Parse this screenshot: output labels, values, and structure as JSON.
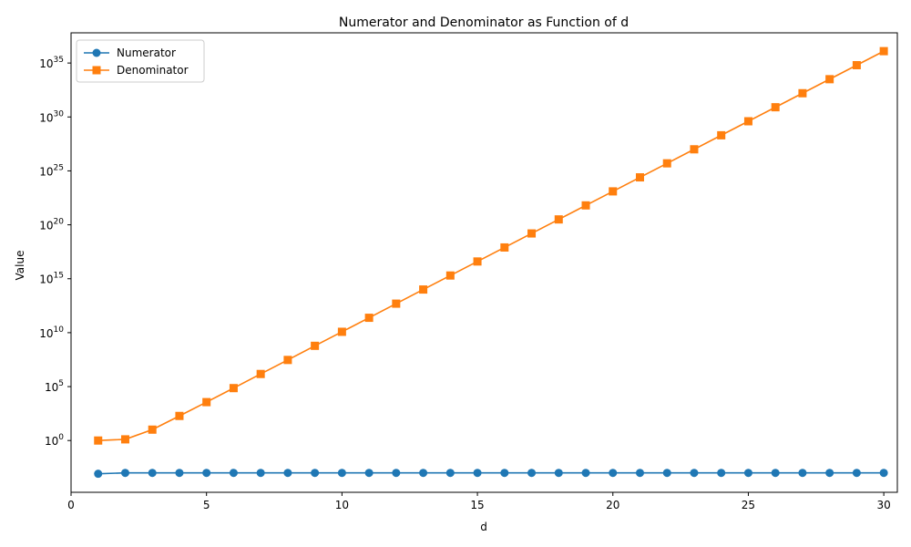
{
  "chart_data": {
    "type": "line",
    "title": "Numerator and Denominator as Function of d",
    "xlabel": "d",
    "ylabel": "Value",
    "yscale": "log",
    "xlim": [
      0,
      30.5
    ],
    "ylim_log10": [
      -4.8,
      37.8
    ],
    "x_ticks": [
      0,
      5,
      10,
      15,
      20,
      25,
      30
    ],
    "y_ticks_exponent": [
      0,
      5,
      10,
      15,
      20,
      25,
      30,
      35
    ],
    "y_tick_base": "10",
    "grid": false,
    "legend_position": "upper-left",
    "x": [
      1,
      2,
      3,
      4,
      5,
      6,
      7,
      8,
      9,
      10,
      11,
      12,
      13,
      14,
      15,
      16,
      17,
      18,
      19,
      20,
      21,
      22,
      23,
      24,
      25,
      26,
      27,
      28,
      29,
      30
    ],
    "series": [
      {
        "name": "Numerator",
        "color": "#1f77b4",
        "marker": "circle",
        "log10_values": [
          -3.08,
          -3.0,
          -3.0,
          -3.0,
          -3.0,
          -3.0,
          -3.0,
          -3.0,
          -3.0,
          -3.0,
          -3.0,
          -3.0,
          -3.0,
          -3.0,
          -3.0,
          -3.0,
          -3.0,
          -3.0,
          -3.0,
          -3.0,
          -3.0,
          -3.0,
          -3.0,
          -3.0,
          -3.0,
          -3.0,
          -3.0,
          -3.0,
          -3.0,
          -3.0
        ]
      },
      {
        "name": "Denominator",
        "color": "#ff7f0e",
        "marker": "square",
        "log10_values": [
          0.0,
          0.11,
          1.01,
          2.28,
          3.56,
          4.86,
          6.17,
          7.47,
          8.78,
          10.08,
          11.38,
          12.69,
          14.0,
          15.3,
          16.6,
          17.9,
          19.2,
          20.5,
          21.8,
          23.1,
          24.4,
          25.7,
          27.0,
          28.3,
          29.6,
          30.9,
          32.2,
          33.5,
          34.8,
          36.1
        ]
      }
    ]
  }
}
